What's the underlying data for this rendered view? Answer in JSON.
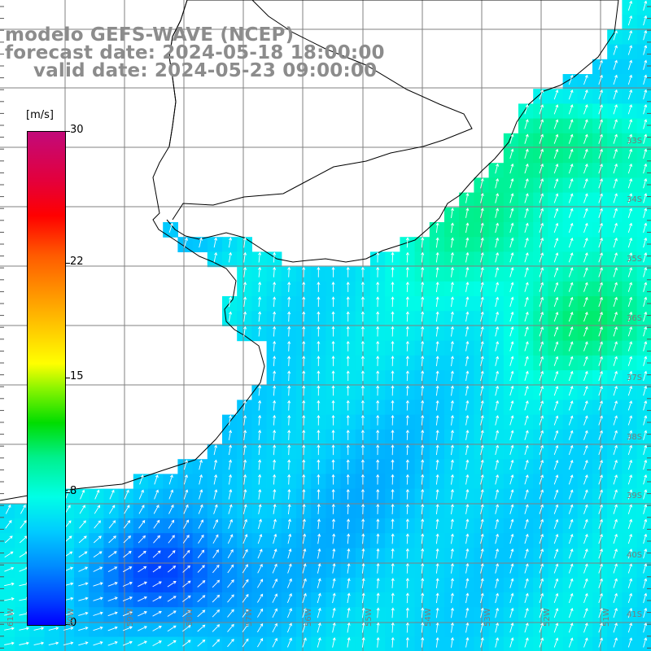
{
  "titles": {
    "model": "modelo GEFS-WAVE (NCEP)",
    "forecast": "forecast date: 2024-05-18 18:00:00",
    "valid": "valid date: 2024-05-23 09:00:00"
  },
  "colorbar": {
    "unit": "[m/s]",
    "ticks": [
      "30",
      "22",
      "15",
      "8",
      "0"
    ],
    "tick_values": [
      30,
      22,
      15,
      8,
      0
    ],
    "range": [
      0,
      30
    ]
  },
  "latitude_labels": [
    "33S",
    "34S",
    "35S",
    "36S",
    "37S",
    "38S",
    "39S",
    "40S",
    "41S"
  ],
  "longitude_labels": [
    "61W",
    "60W",
    "59W",
    "58W",
    "57W",
    "56W",
    "55W",
    "54W",
    "53W",
    "52W",
    "51W"
  ],
  "colors": {
    "land": "#ffffff",
    "coast": "#000000",
    "grid": "#808080",
    "arrow": "#ffffff",
    "title_text": "#8c8c8c"
  }
}
